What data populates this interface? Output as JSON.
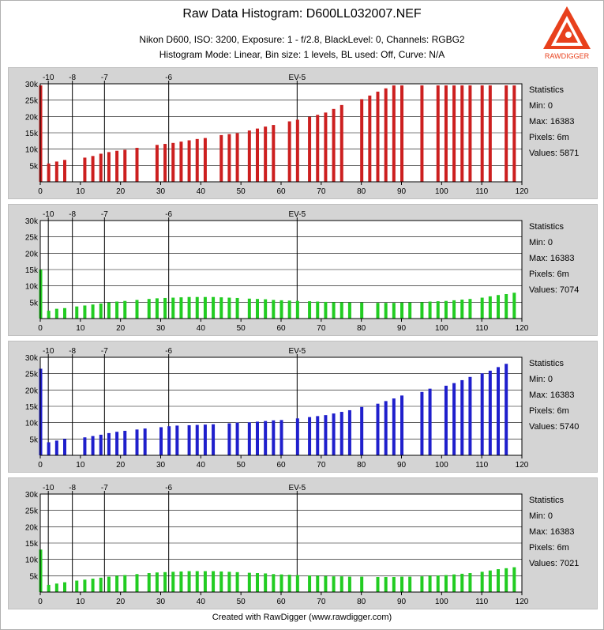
{
  "header": {
    "title": "Raw Data Histogram: D600LL032007.NEF",
    "subtitle_line1": "Nikon D600, ISO: 3200, Exposure: 1 - f/2.8, BlackLevel: 0, Channels: RGBG2",
    "subtitle_line2": "Histogram Mode: Linear, Bin size: 1 levels, BL used: Off, Curve: N/A",
    "logo_text": "RAWDIGGER"
  },
  "footer": {
    "text": "Created with RawDigger (www.rawdigger.com)"
  },
  "colors": {
    "R": "#cc1f1f",
    "G": "#22cc22",
    "B": "#1f1fcc",
    "G2": "#22cc22",
    "panel_bg": "#d4d4d4",
    "accent": "#e8401c"
  },
  "chart_data": [
    {
      "type": "bar",
      "channel": "R",
      "color": "#cc1f1f",
      "xlim": [
        0,
        120
      ],
      "ylim": [
        0,
        30000
      ],
      "x_ticks": [
        0,
        10,
        20,
        30,
        40,
        50,
        60,
        70,
        80,
        90,
        100,
        110,
        120
      ],
      "y_ticks": [
        {
          "v": 5000,
          "label": "5k"
        },
        {
          "v": 10000,
          "label": "10k"
        },
        {
          "v": 15000,
          "label": "15k"
        },
        {
          "v": 20000,
          "label": "20k"
        },
        {
          "v": 25000,
          "label": "25k"
        },
        {
          "v": 30000,
          "label": "30k"
        }
      ],
      "ev_markers": [
        {
          "x": 2,
          "label": "-10"
        },
        {
          "x": 8,
          "label": "-8"
        },
        {
          "x": 16,
          "label": "-7"
        },
        {
          "x": 32,
          "label": "-6"
        },
        {
          "x": 64,
          "label": "EV-5"
        }
      ],
      "x": [
        0,
        2,
        4,
        6,
        11,
        13,
        15,
        17,
        19,
        21,
        24,
        29,
        31,
        33,
        35,
        37,
        39,
        41,
        45,
        47,
        49,
        52,
        54,
        56,
        58,
        62,
        64,
        67,
        69,
        71,
        73,
        75,
        80,
        82,
        84,
        86,
        88,
        90,
        95,
        99,
        101,
        103,
        105,
        107,
        110,
        112,
        116,
        118
      ],
      "values": [
        29500,
        5600,
        6200,
        6700,
        7400,
        7900,
        8600,
        9100,
        9500,
        9800,
        10400,
        11300,
        11600,
        11900,
        12300,
        12700,
        13100,
        13400,
        14300,
        14600,
        14900,
        15700,
        16300,
        16900,
        17400,
        18500,
        19000,
        19900,
        20500,
        21200,
        22300,
        23500,
        25300,
        26400,
        27600,
        28600,
        29500,
        29500,
        29500,
        29500,
        29500,
        29500,
        29500,
        29500,
        29500,
        29500,
        29500,
        29500
      ],
      "statistics": {
        "title": "Statistics",
        "min": "Min: 0",
        "max": "Max: 16383",
        "pixels": "Pixels: 6m",
        "values": "Values: 5871"
      }
    },
    {
      "type": "bar",
      "channel": "G",
      "color": "#22cc22",
      "xlim": [
        0,
        120
      ],
      "ylim": [
        0,
        30000
      ],
      "x_ticks": [
        0,
        10,
        20,
        30,
        40,
        50,
        60,
        70,
        80,
        90,
        100,
        110,
        120
      ],
      "y_ticks": [
        {
          "v": 5000,
          "label": "5k"
        },
        {
          "v": 10000,
          "label": "10k"
        },
        {
          "v": 15000,
          "label": "15k"
        },
        {
          "v": 20000,
          "label": "20k"
        },
        {
          "v": 25000,
          "label": "25k"
        },
        {
          "v": 30000,
          "label": "30k"
        }
      ],
      "ev_markers": [
        {
          "x": 2,
          "label": "-10"
        },
        {
          "x": 8,
          "label": "-8"
        },
        {
          "x": 16,
          "label": "-7"
        },
        {
          "x": 32,
          "label": "-6"
        },
        {
          "x": 64,
          "label": "EV-5"
        }
      ],
      "x": [
        0,
        2,
        4,
        6,
        9,
        11,
        13,
        15,
        17,
        19,
        21,
        24,
        27,
        29,
        31,
        33,
        35,
        37,
        39,
        41,
        43,
        45,
        47,
        49,
        52,
        54,
        56,
        58,
        60,
        62,
        64,
        67,
        69,
        71,
        73,
        75,
        77,
        80,
        84,
        86,
        88,
        90,
        92,
        95,
        97,
        99,
        101,
        103,
        105,
        107,
        110,
        112,
        114,
        116,
        118
      ],
      "values": [
        15000,
        2400,
        3000,
        3200,
        3700,
        4000,
        4300,
        4600,
        4900,
        5200,
        5400,
        5700,
        6000,
        6200,
        6300,
        6400,
        6500,
        6600,
        6600,
        6600,
        6600,
        6500,
        6400,
        6300,
        6100,
        6000,
        5900,
        5700,
        5600,
        5500,
        5400,
        5300,
        5200,
        5100,
        5000,
        5000,
        4900,
        4900,
        4800,
        4800,
        4800,
        4900,
        4900,
        5000,
        5200,
        5300,
        5400,
        5600,
        5800,
        6000,
        6400,
        6800,
        7200,
        7500,
        7900
      ],
      "statistics": {
        "title": "Statistics",
        "min": "Min: 0",
        "max": "Max: 16383",
        "pixels": "Pixels: 6m",
        "values": "Values: 7074"
      }
    },
    {
      "type": "bar",
      "channel": "B",
      "color": "#1f1fcc",
      "xlim": [
        0,
        120
      ],
      "ylim": [
        0,
        30000
      ],
      "x_ticks": [
        0,
        10,
        20,
        30,
        40,
        50,
        60,
        70,
        80,
        90,
        100,
        110,
        120
      ],
      "y_ticks": [
        {
          "v": 5000,
          "label": "5k"
        },
        {
          "v": 10000,
          "label": "10k"
        },
        {
          "v": 15000,
          "label": "15k"
        },
        {
          "v": 20000,
          "label": "20k"
        },
        {
          "v": 25000,
          "label": "25k"
        },
        {
          "v": 30000,
          "label": "30k"
        }
      ],
      "ev_markers": [
        {
          "x": 2,
          "label": "-10"
        },
        {
          "x": 8,
          "label": "-8"
        },
        {
          "x": 16,
          "label": "-7"
        },
        {
          "x": 32,
          "label": "-6"
        },
        {
          "x": 64,
          "label": "EV-5"
        }
      ],
      "x": [
        0,
        2,
        4,
        6,
        11,
        13,
        15,
        17,
        19,
        21,
        24,
        26,
        30,
        32,
        34,
        37,
        39,
        41,
        43,
        47,
        49,
        52,
        54,
        56,
        58,
        60,
        64,
        67,
        69,
        71,
        73,
        75,
        77,
        80,
        84,
        86,
        88,
        90,
        95,
        97,
        101,
        103,
        105,
        107,
        110,
        112,
        114,
        116
      ],
      "values": [
        26500,
        4000,
        4500,
        5000,
        5500,
        5900,
        6300,
        6800,
        7200,
        7500,
        7900,
        8200,
        8600,
        8900,
        9100,
        9200,
        9300,
        9400,
        9500,
        9800,
        10000,
        10100,
        10300,
        10500,
        10700,
        10800,
        11300,
        11700,
        12000,
        12300,
        12800,
        13300,
        13800,
        14800,
        15800,
        16600,
        17400,
        18300,
        19400,
        20400,
        21300,
        22100,
        23000,
        24000,
        25100,
        25900,
        27000,
        28000
      ],
      "statistics": {
        "title": "Statistics",
        "min": "Min: 0",
        "max": "Max: 16383",
        "pixels": "Pixels: 6m",
        "values": "Values: 5740"
      }
    },
    {
      "type": "bar",
      "channel": "G2",
      "color": "#22cc22",
      "xlim": [
        0,
        120
      ],
      "ylim": [
        0,
        30000
      ],
      "x_ticks": [
        0,
        10,
        20,
        30,
        40,
        50,
        60,
        70,
        80,
        90,
        100,
        110,
        120
      ],
      "y_ticks": [
        {
          "v": 5000,
          "label": "5k"
        },
        {
          "v": 10000,
          "label": "10k"
        },
        {
          "v": 15000,
          "label": "15k"
        },
        {
          "v": 20000,
          "label": "20k"
        },
        {
          "v": 25000,
          "label": "25k"
        },
        {
          "v": 30000,
          "label": "30k"
        }
      ],
      "ev_markers": [
        {
          "x": 2,
          "label": "-10"
        },
        {
          "x": 8,
          "label": "-8"
        },
        {
          "x": 16,
          "label": "-7"
        },
        {
          "x": 32,
          "label": "-6"
        },
        {
          "x": 64,
          "label": "EV-5"
        }
      ],
      "x": [
        0,
        2,
        4,
        6,
        9,
        11,
        13,
        15,
        17,
        19,
        21,
        24,
        27,
        29,
        31,
        33,
        35,
        37,
        39,
        41,
        43,
        45,
        47,
        49,
        52,
        54,
        56,
        58,
        60,
        62,
        64,
        67,
        69,
        71,
        73,
        75,
        77,
        80,
        84,
        86,
        88,
        90,
        92,
        95,
        97,
        99,
        101,
        103,
        105,
        107,
        110,
        112,
        114,
        116,
        118
      ],
      "values": [
        13000,
        2200,
        2600,
        3000,
        3500,
        3800,
        4100,
        4400,
        4700,
        5000,
        5200,
        5500,
        5800,
        6000,
        6100,
        6200,
        6300,
        6400,
        6400,
        6400,
        6400,
        6300,
        6200,
        6100,
        5900,
        5800,
        5700,
        5500,
        5400,
        5300,
        5200,
        5100,
        5000,
        4900,
        4800,
        4800,
        4700,
        4700,
        4600,
        4600,
        4600,
        4700,
        4700,
        4800,
        5000,
        5100,
        5200,
        5400,
        5600,
        5800,
        6200,
        6600,
        7000,
        7300,
        7600
      ],
      "statistics": {
        "title": "Statistics",
        "min": "Min: 0",
        "max": "Max: 16383",
        "pixels": "Pixels: 6m",
        "values": "Values: 7021"
      }
    }
  ]
}
